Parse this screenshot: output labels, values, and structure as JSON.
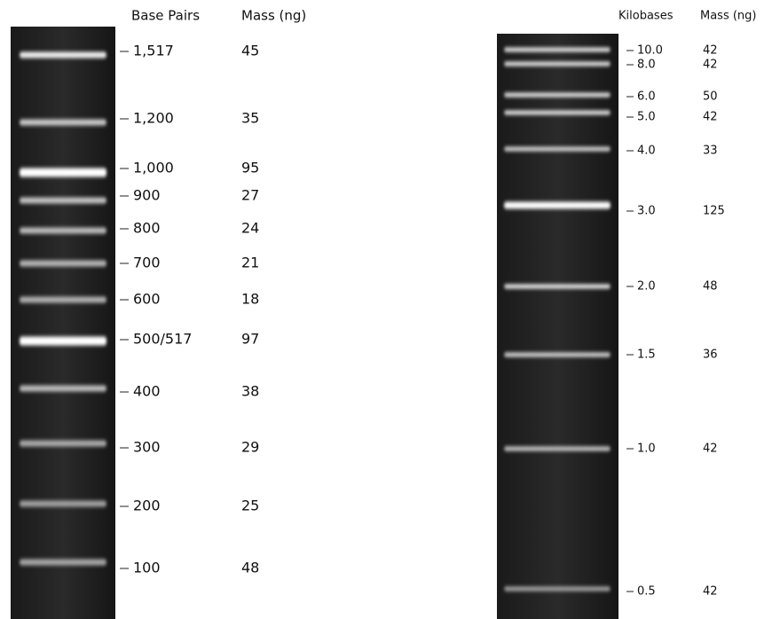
{
  "left_ladder": {
    "header_label": "Base Pairs",
    "header_mass": "Mass (ng)",
    "bands": [
      {
        "label": "1,517",
        "mass": 45
      },
      {
        "label": "1,200",
        "mass": 35
      },
      {
        "label": "1,000",
        "mass": 95
      },
      {
        "label": "900",
        "mass": 27
      },
      {
        "label": "800",
        "mass": 24
      },
      {
        "label": "700",
        "mass": 21
      },
      {
        "label": "600",
        "mass": 18
      },
      {
        "label": "500/517",
        "mass": 97
      },
      {
        "label": "400",
        "mass": 38
      },
      {
        "label": "300",
        "mass": 29
      },
      {
        "label": "200",
        "mass": 25
      },
      {
        "label": "100",
        "mass": 48
      }
    ]
  },
  "right_ladder": {
    "header_label": "Kilobases",
    "header_mass": "Mass (ng)",
    "bands": [
      {
        "label": "10.0",
        "mass": 42
      },
      {
        "label": "8.0",
        "mass": 42
      },
      {
        "label": "6.0",
        "mass": 50
      },
      {
        "label": "5.0",
        "mass": 42
      },
      {
        "label": "4.0",
        "mass": 33
      },
      {
        "label": "3.0",
        "mass": 125
      },
      {
        "label": "2.0",
        "mass": 48
      },
      {
        "label": "1.5",
        "mass": 36
      },
      {
        "label": "1.0",
        "mass": 42
      },
      {
        "label": "0.5",
        "mass": 42
      }
    ]
  }
}
